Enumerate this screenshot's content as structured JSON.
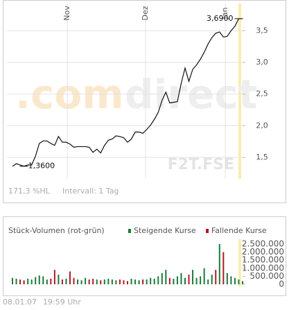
{
  "chart_data": [
    {
      "type": "line",
      "watermark": [
        ".com",
        "direct"
      ],
      "symbol": "F2T.FSE",
      "x": [
        0,
        1,
        2,
        3,
        4,
        5,
        6,
        7,
        8,
        9,
        10,
        11,
        12,
        13,
        14,
        15,
        16,
        17,
        18,
        19,
        20,
        21,
        22,
        23,
        24,
        25,
        26,
        27,
        28,
        29,
        30,
        31,
        32,
        33,
        34,
        35,
        36,
        37,
        38,
        39,
        40,
        41,
        42,
        43,
        44,
        45,
        46,
        47,
        48,
        49,
        50,
        51,
        52,
        53,
        54,
        55,
        56,
        57,
        58,
        59,
        60
      ],
      "series": [
        {
          "color": "#111111",
          "values": [
            1.36,
            1.4,
            1.38,
            1.36,
            1.38,
            1.38,
            1.52,
            1.72,
            1.76,
            1.76,
            1.72,
            1.69,
            1.83,
            1.74,
            1.74,
            1.71,
            1.66,
            1.67,
            1.67,
            1.67,
            1.66,
            1.58,
            1.63,
            1.57,
            1.69,
            1.77,
            1.79,
            1.84,
            1.83,
            1.81,
            1.74,
            1.79,
            1.9,
            1.9,
            1.88,
            1.94,
            2.01,
            2.1,
            2.21,
            2.4,
            2.53,
            2.36,
            2.37,
            2.38,
            2.67,
            2.91,
            2.7,
            2.89,
            2.96,
            3.05,
            3.16,
            3.29,
            3.39,
            3.46,
            3.48,
            3.4,
            3.41,
            3.5,
            3.57,
            3.69,
            3.69
          ]
        }
      ],
      "xlim": [
        0,
        60
      ],
      "xticks": [
        {
          "value": 14.3,
          "label": "Nov"
        },
        {
          "value": 34.7,
          "label": "Dez"
        },
        {
          "value": 55.5,
          "label": "Jan"
        }
      ],
      "ylim": [
        1.16,
        3.93
      ],
      "yticks": [
        {
          "value": 1.5,
          "label": "1,5"
        },
        {
          "value": 2.0,
          "label": "2,0"
        },
        {
          "value": 2.5,
          "label": "2,5"
        },
        {
          "value": 3.0,
          "label": "3,0"
        },
        {
          "value": 3.5,
          "label": "3,5"
        }
      ],
      "annotations": [
        {
          "label": "3,6900",
          "value": 3.69,
          "x": 59
        },
        {
          "label": "1,3600",
          "value": 1.36,
          "x": 3
        }
      ],
      "footer": [
        "171,3 %HL",
        "Intervall: 1 Tag"
      ],
      "grid": true
    },
    {
      "type": "bar",
      "title": "Stück-Volumen (rot-grün)",
      "x": [
        0,
        1,
        2,
        3,
        4,
        5,
        6,
        7,
        8,
        9,
        10,
        11,
        12,
        13,
        14,
        15,
        16,
        17,
        18,
        19,
        20,
        21,
        22,
        23,
        24,
        25,
        26,
        27,
        28,
        29,
        30,
        31,
        32,
        33,
        34,
        35,
        36,
        37,
        38,
        39,
        40,
        41,
        42,
        43,
        44,
        45,
        46,
        47,
        48,
        49,
        50,
        51,
        52,
        53,
        54,
        55,
        56,
        57,
        58,
        59,
        60
      ],
      "series": [
        {
          "name": "Steigende Kurse",
          "color": "#1a7a3a",
          "values": [
            400000,
            350000,
            null,
            null,
            350000,
            300000,
            450000,
            550000,
            500000,
            300000,
            null,
            null,
            600000,
            null,
            350000,
            null,
            null,
            300000,
            250000,
            400000,
            null,
            null,
            300000,
            null,
            300000,
            350000,
            300000,
            250000,
            null,
            null,
            null,
            350000,
            300000,
            250000,
            null,
            300000,
            400000,
            350000,
            500000,
            700000,
            900000,
            null,
            350000,
            500000,
            700000,
            400000,
            null,
            900000,
            400000,
            500000,
            1000000,
            300000,
            600000,
            null,
            2500000,
            null,
            700000,
            500000,
            400000,
            300000,
            200000
          ]
        },
        {
          "name": "Fallende Kurse",
          "color": "#b0182a",
          "values": [
            null,
            null,
            300000,
            250000,
            null,
            null,
            null,
            null,
            null,
            null,
            350000,
            900000,
            null,
            300000,
            null,
            800000,
            400000,
            null,
            null,
            null,
            300000,
            350000,
            null,
            250000,
            null,
            null,
            null,
            null,
            300000,
            250000,
            200000,
            null,
            null,
            null,
            300000,
            null,
            null,
            null,
            null,
            null,
            null,
            400000,
            null,
            null,
            null,
            null,
            600000,
            null,
            null,
            null,
            null,
            null,
            null,
            900000,
            null,
            2000000,
            null,
            null,
            null,
            null,
            null
          ]
        }
      ],
      "xlim": [
        0,
        60
      ],
      "ylim": [
        -130000,
        2800000
      ],
      "yticks": [
        0,
        {
          "value": 500000,
          "label": "500.000"
        },
        {
          "value": 1000000,
          "label": "1.000.000"
        },
        {
          "value": 1500000,
          "label": "1.500.000"
        },
        {
          "value": 2000000,
          "label": "2.000.000"
        },
        {
          "value": 2500000,
          "label": "2.500.000"
        }
      ],
      "footer": [
        "08.01.07",
        "19:59 Uhr"
      ]
    }
  ]
}
